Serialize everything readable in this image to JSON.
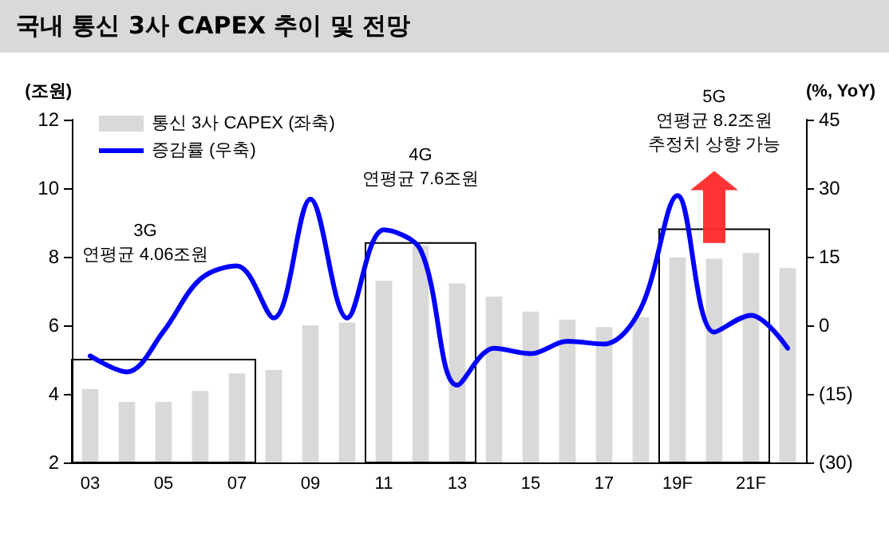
{
  "chart_data": {
    "type": "bar",
    "title": "국내 통신 3사 CAPEX 추이 및 전망",
    "ylabel": "(조원)",
    "y2label": "(%, YoY)",
    "categories": [
      "03",
      null,
      "05",
      null,
      "07",
      null,
      "09",
      null,
      "11",
      null,
      "13",
      null,
      "15",
      null,
      "17",
      null,
      "19F",
      null,
      "21F",
      null
    ],
    "series": [
      {
        "name": "통신 3사 CAPEX (좌축)",
        "color": "#d9d9d9",
        "values": [
          4.14,
          3.77,
          3.77,
          4.09,
          4.6,
          4.7,
          6.0,
          6.08,
          7.3,
          8.33,
          7.22,
          6.84,
          6.4,
          6.17,
          5.95,
          6.23,
          7.98,
          7.94,
          8.11,
          7.67
        ]
      },
      {
        "name": "증감률 (우축)",
        "type": "line",
        "axis": "y2",
        "color": "#0000ff",
        "values": [
          -6.7,
          -10.2,
          -1.3,
          10.1,
          13.0,
          1.6,
          27.6,
          1.6,
          20.9,
          16.5,
          -13.1,
          -5.0,
          -6.2,
          -3.5,
          -4.1,
          3.7,
          28.4,
          -1.5,
          2.2,
          -5.0
        ]
      }
    ],
    "ylim": [
      2,
      12
    ],
    "yticks": [
      2,
      4,
      6,
      8,
      10,
      12
    ],
    "y2lim": [
      -30,
      45
    ],
    "y2ticks": [
      {
        "value": -30,
        "label": "(30)"
      },
      {
        "value": -15,
        "label": "(15)"
      },
      0,
      15,
      30,
      45
    ],
    "annotations": [
      "3G\n연평균 4.06조원",
      "4G\n연평균 7.6조원",
      "5G\n연평균 8.2조원\n추정치 상향 가능"
    ],
    "grid": false,
    "legend": "top left",
    "marker": "none",
    "line_style": "solid"
  }
}
